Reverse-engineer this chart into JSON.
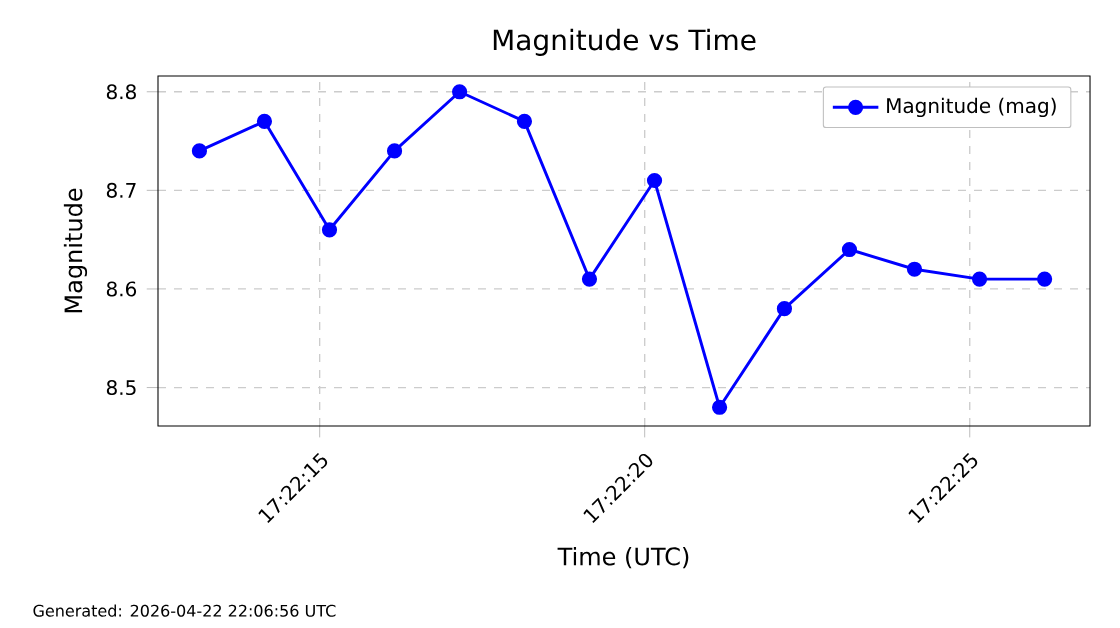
{
  "chart_data": {
    "type": "line",
    "title": "Magnitude vs Time",
    "xlabel": "Time (UTC)",
    "ylabel": "Magnitude",
    "x": [
      17.370319,
      17.370597,
      17.370875,
      17.371153,
      17.371431,
      17.371708,
      17.371986,
      17.372264,
      17.372542,
      17.372819,
      17.373097,
      17.373375,
      17.373653,
      17.373931
    ],
    "series": [
      {
        "name": "Magnitude (mag)",
        "color": "#0000ff",
        "values": [
          8.74,
          8.77,
          8.66,
          8.74,
          8.8,
          8.77,
          8.61,
          8.71,
          8.48,
          8.58,
          8.64,
          8.62,
          8.61,
          8.61
        ]
      }
    ],
    "xlim": [
      17.370142,
      17.374125
    ],
    "ylim": [
      8.461,
      8.816
    ],
    "xticks": [
      {
        "value": 17.370833,
        "label": "17:22:15"
      },
      {
        "value": 17.372222,
        "label": "17:22:20"
      },
      {
        "value": 17.373611,
        "label": "17:22:25"
      }
    ],
    "yticks": [
      8.5,
      8.6,
      8.7,
      8.8
    ],
    "grid": true,
    "legend": "top right",
    "marker": "circle",
    "line_style": "solid",
    "annotations": [
      "Generated: 2026-04-22 22:06:56 UTC"
    ]
  }
}
